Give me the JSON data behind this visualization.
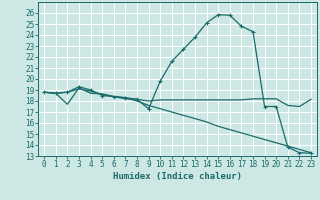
{
  "xlabel": "Humidex (Indice chaleur)",
  "xlim": [
    -0.5,
    23.5
  ],
  "ylim": [
    13,
    27
  ],
  "yticks": [
    13,
    14,
    15,
    16,
    17,
    18,
    19,
    20,
    21,
    22,
    23,
    24,
    25,
    26
  ],
  "xticks": [
    0,
    1,
    2,
    3,
    4,
    5,
    6,
    7,
    8,
    9,
    10,
    11,
    12,
    13,
    14,
    15,
    16,
    17,
    18,
    19,
    20,
    21,
    22,
    23
  ],
  "bg_color": "#cde8e4",
  "grid_color": "#ffffff",
  "line_color": "#1a6b6b",
  "line1_x": [
    0,
    1,
    2,
    3,
    4,
    5,
    6,
    7,
    8,
    9,
    10,
    11,
    12,
    13,
    14,
    15,
    16,
    17,
    18,
    19,
    20,
    21,
    22,
    23
  ],
  "line1_y": [
    18.8,
    18.7,
    18.8,
    19.3,
    19.0,
    18.5,
    18.4,
    18.3,
    18.15,
    17.3,
    19.8,
    21.6,
    22.7,
    23.8,
    25.1,
    25.85,
    25.8,
    24.8,
    24.3,
    17.5,
    17.5,
    13.8,
    13.3,
    13.25
  ],
  "line2_x": [
    0,
    1,
    2,
    3,
    4,
    5,
    6,
    7,
    8,
    9,
    10,
    11,
    12,
    13,
    14,
    15,
    16,
    17,
    18,
    19,
    20,
    21,
    22,
    23
  ],
  "line2_y": [
    18.8,
    18.7,
    17.7,
    19.2,
    18.7,
    18.65,
    18.4,
    18.2,
    18.15,
    18.0,
    18.1,
    18.1,
    18.1,
    18.1,
    18.1,
    18.1,
    18.1,
    18.1,
    18.2,
    18.2,
    18.2,
    17.6,
    17.5,
    18.15
  ],
  "line3_x": [
    0,
    1,
    2,
    3,
    4,
    5,
    6,
    7,
    8,
    9,
    10,
    11,
    12,
    13,
    14,
    15,
    16,
    17,
    18,
    19,
    20,
    21,
    22,
    23
  ],
  "line3_y": [
    18.8,
    18.7,
    18.8,
    19.1,
    18.9,
    18.6,
    18.4,
    18.3,
    18.0,
    17.6,
    17.3,
    17.0,
    16.7,
    16.4,
    16.1,
    15.7,
    15.4,
    15.1,
    14.8,
    14.5,
    14.2,
    13.9,
    13.6,
    13.3
  ]
}
